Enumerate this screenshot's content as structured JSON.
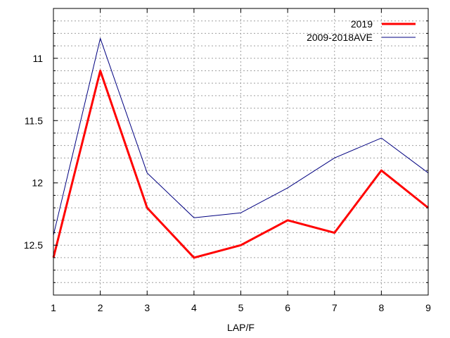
{
  "chart_data": {
    "type": "line",
    "title": "",
    "xlabel": "LAP/F",
    "ylabel": "",
    "x": [
      1,
      2,
      3,
      4,
      5,
      6,
      7,
      8,
      9
    ],
    "xlim": [
      1,
      9
    ],
    "ylim": [
      10.6,
      12.9
    ],
    "y_inverted": true,
    "x_ticks": [
      1,
      2,
      3,
      4,
      5,
      6,
      7,
      8,
      9
    ],
    "y_ticks": [
      11,
      11.5,
      12,
      12.5
    ],
    "grid": true,
    "grid_style": "dotted",
    "legend_position": "top-right",
    "series": [
      {
        "name": "2019",
        "color": "#ff0000",
        "line_style": "thick",
        "values": [
          12.6,
          11.1,
          12.2,
          12.6,
          12.5,
          12.3,
          12.4,
          11.9,
          12.2
        ]
      },
      {
        "name": "2009-2018AVE",
        "color": "#000080",
        "line_style": "thin",
        "values": [
          12.42,
          10.84,
          11.92,
          12.28,
          12.24,
          12.04,
          11.8,
          11.64,
          11.92
        ]
      }
    ]
  }
}
